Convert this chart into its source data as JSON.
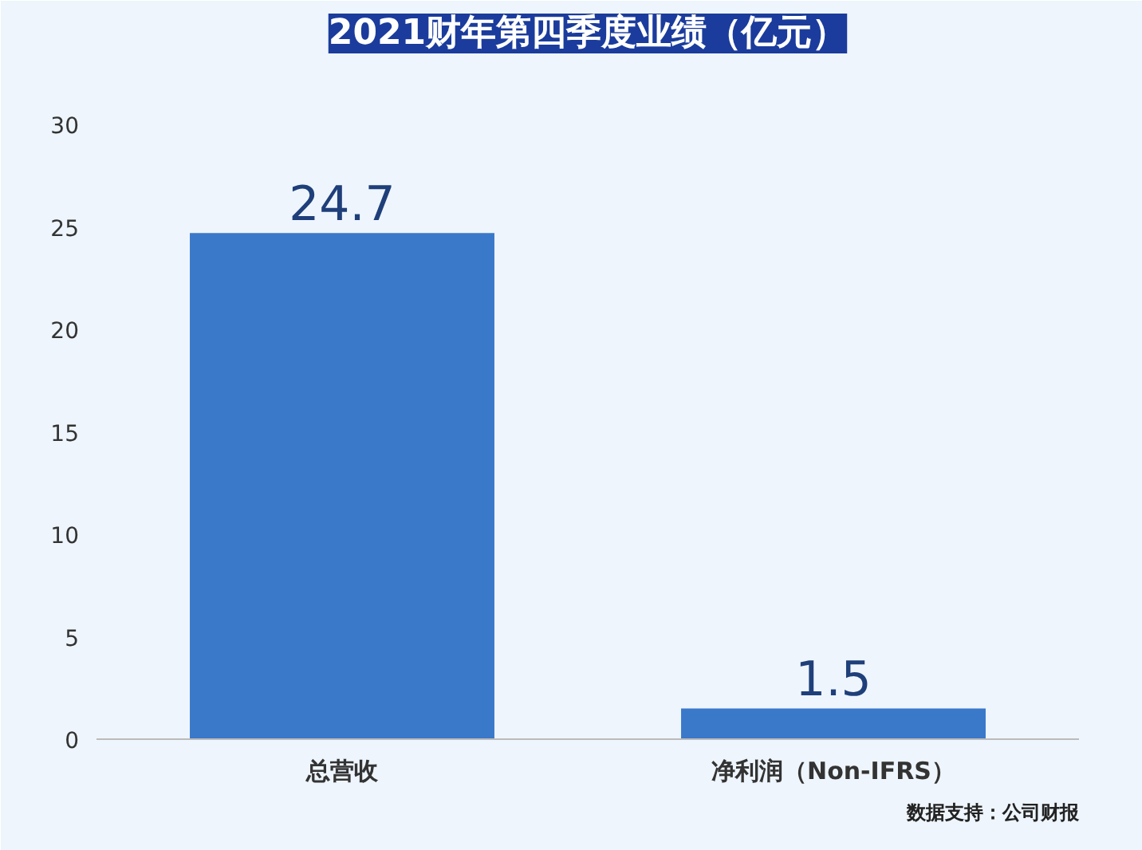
{
  "chart_data": {
    "type": "bar",
    "title": "2021财年第四季度业绩（亿元）",
    "categories": [
      "总营收",
      "净利润（Non-IFRS）"
    ],
    "values": [
      24.7,
      1.5
    ],
    "color": "#3a78c9",
    "ylim": [
      0,
      33
    ],
    "yticks": [
      0,
      5,
      10,
      15,
      20,
      25,
      30
    ],
    "data_labels": true,
    "grid": false,
    "annotations": [
      "数据支持：公司财报"
    ]
  }
}
